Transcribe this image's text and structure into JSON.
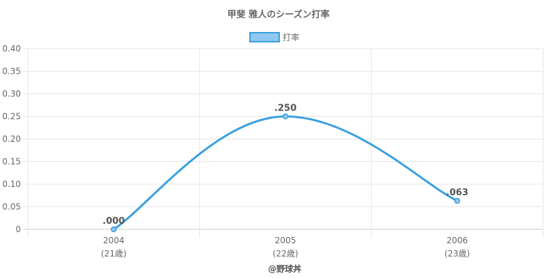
{
  "title": "甲斐 雅人のシーズン打率",
  "credit": "@野球丼",
  "colors": {
    "line": "#3aa0e0",
    "legend_fill": "#8fc8f0",
    "grid": "#e6e6e6",
    "axis": "#cccccc"
  },
  "chart_data": {
    "type": "line",
    "categories": [
      "2004",
      "2005",
      "2006"
    ],
    "category_sublabels": [
      "(21歳)",
      "(22歳)",
      "(23歳)"
    ],
    "series": [
      {
        "name": "打率",
        "values": [
          0.0,
          0.25,
          0.063
        ],
        "labels": [
          ".000",
          ".250",
          ".063"
        ]
      }
    ],
    "ylim": [
      0,
      0.4
    ],
    "yticks": [
      "0",
      "0.05",
      "0.10",
      "0.15",
      "0.20",
      "0.25",
      "0.30",
      "0.35",
      "0.40"
    ],
    "grid": true,
    "legend_position": "top-center",
    "smooth": true
  }
}
